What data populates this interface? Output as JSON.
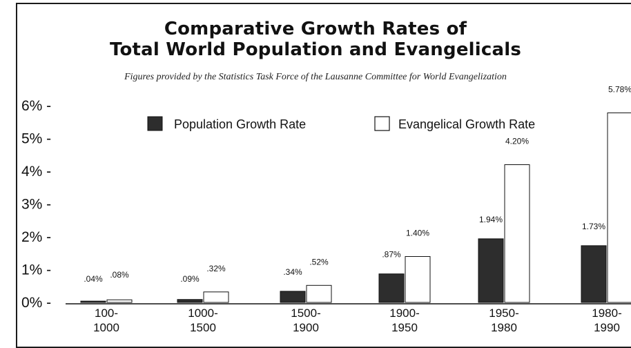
{
  "chart_data": {
    "type": "bar",
    "title_line1": "Comparative Growth Rates of",
    "title_line2": "Total World Population and Evangelicals",
    "subtitle": "Figures provided by the Statistics Task Force of the Lausanne Committee for World Evangelization",
    "categories": [
      {
        "start": "100-",
        "end": "1000"
      },
      {
        "start": "1000-",
        "end": "1500"
      },
      {
        "start": "1500-",
        "end": "1900"
      },
      {
        "start": "1900-",
        "end": "1950"
      },
      {
        "start": "1950-",
        "end": "1980"
      },
      {
        "start": "1980-",
        "end": "1990"
      }
    ],
    "series": [
      {
        "name": "Population Growth Rate",
        "color": "#2d2d2d",
        "values": [
          0.04,
          0.09,
          0.34,
          0.87,
          1.94,
          1.73
        ],
        "labels": [
          ".04%",
          ".09%",
          ".34%",
          ".87%",
          "1.94%",
          "1.73%"
        ]
      },
      {
        "name": "Evangelical Growth Rate",
        "color": "#ffffff",
        "values": [
          0.08,
          0.32,
          0.52,
          1.4,
          4.2,
          5.78
        ],
        "labels": [
          ".08%",
          ".32%",
          ".52%",
          "1.40%",
          "4.20%",
          "5.78%"
        ]
      }
    ],
    "yticks": [
      "0% -",
      "1% -",
      "2% -",
      "3% -",
      "4% -",
      "5% -",
      "6% -"
    ],
    "ylim": [
      0,
      6
    ],
    "legend_position": "top",
    "grid": false
  }
}
